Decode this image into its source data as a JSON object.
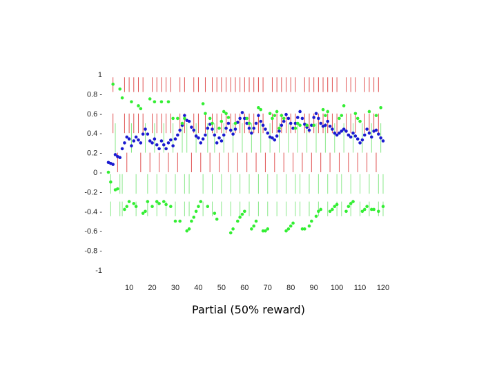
{
  "caption": "Partial (50% reward)",
  "colors": {
    "blue": "#1a1ad0",
    "green": "#33ee33",
    "red": "#e05050",
    "lightgreen": "#88e888",
    "axis": "#333333"
  },
  "chart_data": {
    "type": "scatter",
    "title": "Partial (50% reward)",
    "xlabel": "",
    "ylabel": "",
    "xlim": [
      1,
      120
    ],
    "ylim": [
      -1,
      1
    ],
    "grid": false,
    "x_ticks": [
      10,
      20,
      30,
      40,
      50,
      60,
      70,
      80,
      90,
      100,
      110,
      120
    ],
    "x_tick_labels": [
      "10",
      "20",
      "30",
      "40",
      "50",
      "60",
      "70",
      "80",
      "90",
      "100",
      "110",
      "120"
    ],
    "y_ticks": [
      1,
      0.8,
      0.6,
      0.4,
      0.2,
      0,
      -0.2,
      -0.4,
      -0.6,
      -0.8,
      -1
    ],
    "y_tick_labels": [
      "1",
      "0.8 -",
      "0.6 -",
      "0.4 -",
      "0.2 -",
      "0 -",
      "-0.2 -",
      "-0.4 -",
      "-0.6 -",
      "-0.8 -",
      "-1"
    ],
    "series": [
      {
        "color": "#1a1ad0",
        "marker": "dot",
        "x": [
          1,
          2,
          3,
          4,
          5,
          6,
          7,
          8,
          9,
          10,
          11,
          12,
          13,
          14,
          15,
          16,
          17,
          18,
          19,
          20,
          21,
          22,
          23,
          24,
          25,
          26,
          27,
          28,
          29,
          30,
          31,
          32,
          33,
          34,
          35,
          36,
          37,
          38,
          39,
          40,
          41,
          42,
          43,
          44,
          45,
          46,
          47,
          48,
          49,
          50,
          51,
          52,
          53,
          54,
          55,
          56,
          57,
          58,
          59,
          60,
          61,
          62,
          63,
          64,
          65,
          66,
          67,
          68,
          69,
          70,
          71,
          72,
          73,
          74,
          75,
          76,
          77,
          78,
          79,
          80,
          81,
          82,
          83,
          84,
          85,
          86,
          87,
          88,
          89,
          90,
          91,
          92,
          93,
          94,
          95,
          96,
          97,
          98,
          99,
          100,
          101,
          102,
          103,
          104,
          105,
          106,
          107,
          108,
          109,
          110,
          111,
          112,
          113,
          114,
          115,
          116,
          117,
          118,
          119,
          120
        ],
        "y": [
          0.1,
          0.09,
          0.08,
          0.18,
          0.16,
          0.15,
          0.24,
          0.3,
          0.36,
          0.34,
          0.27,
          0.32,
          0.36,
          0.33,
          0.3,
          0.39,
          0.44,
          0.39,
          0.32,
          0.3,
          0.34,
          0.28,
          0.24,
          0.32,
          0.28,
          0.24,
          0.3,
          0.33,
          0.27,
          0.34,
          0.38,
          0.43,
          0.48,
          0.58,
          0.53,
          0.52,
          0.46,
          0.43,
          0.37,
          0.35,
          0.3,
          0.34,
          0.38,
          0.45,
          0.49,
          0.44,
          0.38,
          0.3,
          0.35,
          0.32,
          0.38,
          0.45,
          0.5,
          0.43,
          0.39,
          0.44,
          0.51,
          0.55,
          0.61,
          0.55,
          0.5,
          0.45,
          0.4,
          0.45,
          0.5,
          0.58,
          0.52,
          0.48,
          0.44,
          0.4,
          0.36,
          0.35,
          0.33,
          0.37,
          0.42,
          0.48,
          0.52,
          0.59,
          0.55,
          0.5,
          0.45,
          0.5,
          0.56,
          0.62,
          0.55,
          0.49,
          0.46,
          0.43,
          0.48,
          0.56,
          0.6,
          0.55,
          0.5,
          0.47,
          0.48,
          0.52,
          0.47,
          0.44,
          0.4,
          0.38,
          0.4,
          0.42,
          0.44,
          0.42,
          0.38,
          0.36,
          0.4,
          0.37,
          0.34,
          0.3,
          0.33,
          0.38,
          0.44,
          0.4,
          0.36,
          0.42,
          0.43,
          0.39,
          0.35,
          0.32
        ]
      },
      {
        "color": "#33ee33",
        "marker": "dot",
        "x": [
          1,
          2,
          3,
          4,
          5,
          6,
          7,
          8,
          9,
          10,
          11,
          12,
          13,
          14,
          15,
          16,
          17,
          18,
          19,
          20,
          21,
          22,
          23,
          24,
          25,
          26,
          27,
          28,
          29,
          30,
          31,
          32,
          33,
          34,
          35,
          36,
          37,
          38,
          39,
          40,
          41,
          42,
          43,
          44,
          45,
          46,
          47,
          48,
          49,
          50,
          51,
          52,
          53,
          54,
          55,
          56,
          57,
          58,
          59,
          60,
          61,
          62,
          63,
          64,
          65,
          66,
          67,
          68,
          69,
          70,
          71,
          72,
          73,
          74,
          75,
          76,
          77,
          78,
          79,
          80,
          81,
          82,
          83,
          84,
          85,
          86,
          87,
          88,
          89,
          90,
          91,
          92,
          93,
          94,
          95,
          96,
          97,
          98,
          99,
          100,
          101,
          102,
          103,
          104,
          105,
          106,
          107,
          108,
          109,
          110,
          111,
          112,
          113,
          114,
          115,
          116,
          117,
          118,
          119,
          120
        ],
        "y": [
          0.0,
          -0.1,
          0.9,
          -0.18,
          -0.17,
          0.85,
          0.76,
          -0.38,
          -0.35,
          -0.3,
          0.72,
          -0.32,
          -0.35,
          0.68,
          0.65,
          -0.42,
          -0.4,
          -0.3,
          0.75,
          -0.35,
          0.72,
          -0.3,
          -0.32,
          0.72,
          -0.3,
          -0.33,
          0.72,
          -0.35,
          0.55,
          -0.5,
          0.55,
          -0.5,
          0.5,
          0.55,
          -0.6,
          -0.58,
          -0.5,
          -0.46,
          -0.4,
          -0.35,
          -0.3,
          0.7,
          0.6,
          -0.35,
          0.55,
          0.5,
          -0.42,
          -0.48,
          0.45,
          0.52,
          0.62,
          0.6,
          0.56,
          -0.62,
          -0.58,
          0.5,
          -0.5,
          -0.46,
          -0.43,
          -0.4,
          0.55,
          0.5,
          -0.58,
          -0.55,
          -0.5,
          0.66,
          0.64,
          -0.6,
          -0.6,
          -0.58,
          0.6,
          0.55,
          0.58,
          0.62,
          0.45,
          0.58,
          0.55,
          -0.6,
          -0.58,
          -0.55,
          -0.52,
          0.45,
          0.5,
          0.48,
          -0.58,
          -0.58,
          0.48,
          -0.55,
          -0.5,
          0.48,
          -0.45,
          -0.4,
          -0.38,
          0.64,
          0.58,
          0.62,
          -0.4,
          -0.38,
          -0.35,
          -0.33,
          0.55,
          0.58,
          0.68,
          -0.4,
          -0.35,
          -0.32,
          -0.3,
          0.6,
          0.55,
          0.52,
          -0.4,
          -0.38,
          -0.35,
          0.62,
          -0.38,
          -0.38,
          0.58,
          -0.4,
          0.66,
          -0.35
        ]
      }
    ],
    "trial_marks": {
      "description_colors": [
        "#e05050",
        "#88e888"
      ],
      "red_up": [
        3,
        8,
        10,
        12,
        14,
        16,
        20,
        22,
        24,
        26,
        28,
        32,
        34,
        38,
        40,
        43,
        46,
        48,
        50,
        52,
        54,
        56,
        58,
        60,
        62,
        64,
        66,
        68,
        72,
        74,
        76,
        78,
        80,
        82,
        86,
        88,
        90,
        92,
        94,
        96,
        98,
        100,
        104,
        106,
        108,
        112,
        114,
        116,
        118
      ],
      "red_down": [
        5,
        9,
        15,
        19,
        23,
        27,
        31,
        37,
        41,
        45,
        49,
        53,
        57,
        61,
        65,
        69,
        73,
        77,
        81,
        85,
        89,
        93,
        97,
        101,
        105,
        109,
        113,
        117
      ],
      "green_up": [
        4,
        11,
        17,
        21,
        25,
        29,
        33,
        35,
        39,
        44,
        47,
        51,
        55,
        59,
        63,
        67,
        71,
        75,
        79,
        83,
        87,
        91,
        95,
        99,
        103,
        107,
        111,
        115,
        119
      ],
      "green_down": [
        2,
        6,
        7,
        13,
        18,
        22,
        26,
        30,
        34,
        36,
        42,
        46,
        50,
        54,
        58,
        62,
        66,
        70,
        74,
        78,
        82,
        84,
        88,
        92,
        96,
        100,
        102,
        106,
        110,
        114,
        118,
        120
      ]
    }
  }
}
